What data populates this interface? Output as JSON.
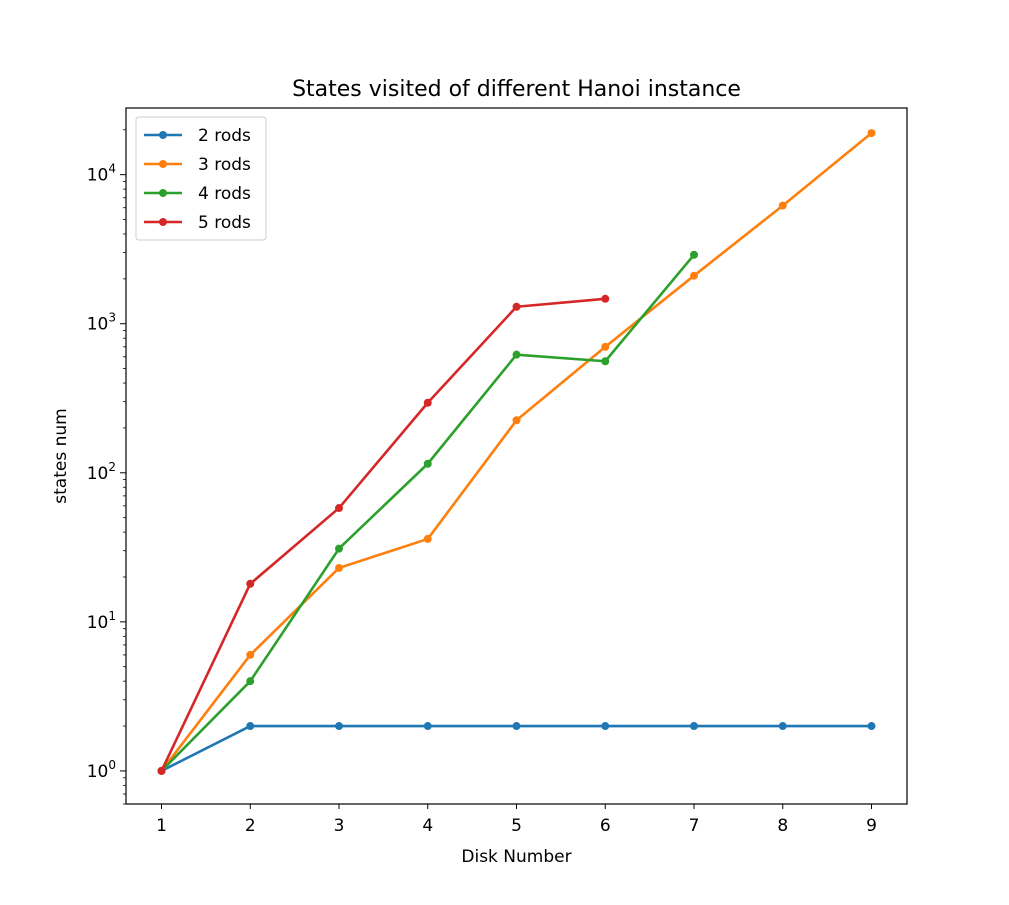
{
  "chart_data": {
    "type": "line",
    "title": "States visited of different Hanoi instance",
    "xlabel": "Disk Number",
    "ylabel": "states num",
    "yscale": "log",
    "x_ticks": [
      "1",
      "2",
      "3",
      "4",
      "5",
      "6",
      "7",
      "8",
      "9"
    ],
    "y_ticks": [
      {
        "base": "10",
        "exp": "0"
      },
      {
        "base": "10",
        "exp": "1"
      },
      {
        "base": "10",
        "exp": "2"
      },
      {
        "base": "10",
        "exp": "3"
      },
      {
        "base": "10",
        "exp": "4"
      }
    ],
    "xlim": [
      0.6,
      9.4
    ],
    "ylim": [
      0.6,
      28000
    ],
    "legend_position": "upper-left",
    "grid": false,
    "series": [
      {
        "name": "2 rods",
        "color": "#1f77b4",
        "x": [
          1,
          2,
          3,
          4,
          5,
          6,
          7,
          8,
          9
        ],
        "y": [
          1,
          2,
          2,
          2,
          2,
          2,
          2,
          2,
          2
        ]
      },
      {
        "name": "3 rods",
        "color": "#ff7f0e",
        "x": [
          1,
          2,
          3,
          4,
          5,
          6,
          7,
          8,
          9
        ],
        "y": [
          1,
          6,
          23,
          36,
          225,
          700,
          2100,
          6200,
          19000
        ]
      },
      {
        "name": "4 rods",
        "color": "#2ca02c",
        "x": [
          1,
          2,
          3,
          4,
          5,
          6,
          7
        ],
        "y": [
          1,
          4,
          31,
          115,
          620,
          560,
          2900
        ]
      },
      {
        "name": "5 rods",
        "color": "#d62728",
        "x": [
          1,
          2,
          3,
          4,
          5,
          6
        ],
        "y": [
          1,
          18,
          58,
          295,
          1300,
          1470
        ]
      }
    ]
  }
}
